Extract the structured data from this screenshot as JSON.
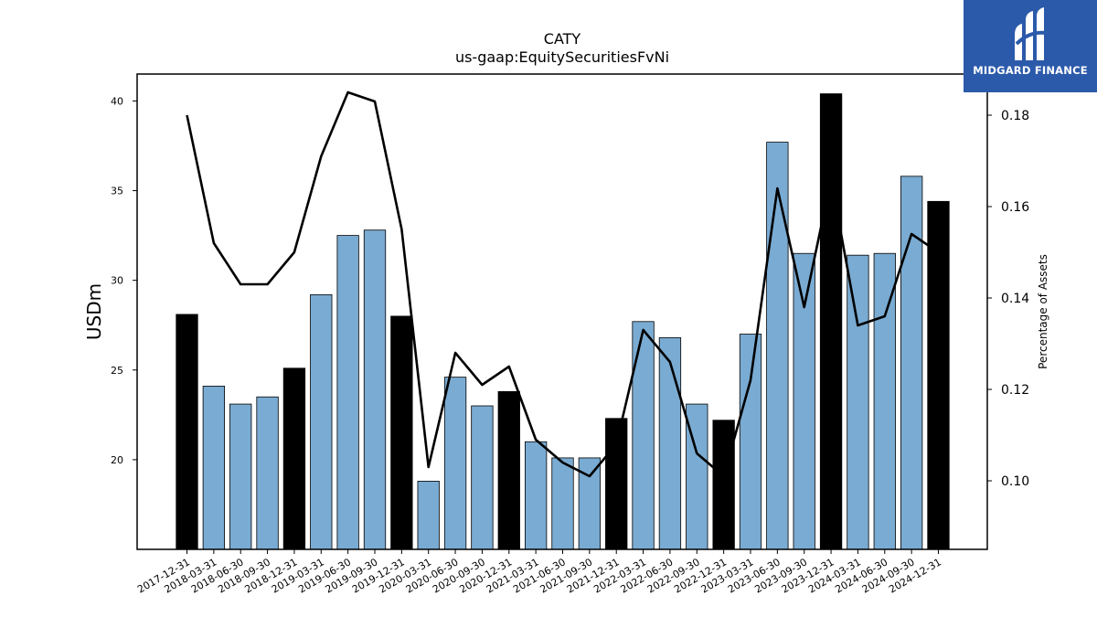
{
  "chart_data": {
    "type": "bar",
    "title": "CATY",
    "subtitle": "us-gaap:EquitySecuritiesFvNi",
    "ylabel": "USDm",
    "ylabel_right": "Percentage of Assets",
    "ylim": [
      15,
      41.5
    ],
    "ylim_right": [
      0.085,
      0.189
    ],
    "yticks": [
      20,
      25,
      30,
      35,
      40
    ],
    "yticks_right": [
      0.1,
      0.12,
      0.14,
      0.16,
      0.18
    ],
    "grid": false,
    "categories": [
      "2017-12-31",
      "2018-03-31",
      "2018-06-30",
      "2018-09-30",
      "2018-12-31",
      "2019-03-31",
      "2019-06-30",
      "2019-09-30",
      "2019-12-31",
      "2020-03-31",
      "2020-06-30",
      "2020-09-30",
      "2020-12-31",
      "2021-03-31",
      "2021-06-30",
      "2021-09-30",
      "2021-12-31",
      "2022-03-31",
      "2022-06-30",
      "2022-09-30",
      "2022-12-31",
      "2023-03-31",
      "2023-06-30",
      "2023-09-30",
      "2023-12-31",
      "2024-03-31",
      "2024-06-30",
      "2024-09-30",
      "2024-12-31"
    ],
    "series": [
      {
        "type": "bar",
        "axis": "left",
        "values": [
          28.1,
          24.1,
          23.1,
          23.5,
          25.1,
          29.2,
          32.5,
          32.8,
          28.0,
          18.8,
          24.6,
          23.0,
          23.8,
          21.0,
          20.1,
          20.1,
          22.3,
          27.7,
          26.8,
          23.1,
          22.2,
          27.0,
          37.7,
          31.5,
          40.4,
          31.4,
          31.5,
          35.8,
          34.4
        ],
        "colors_by_quarter": {
          "year_end": "#000000",
          "other": "#7aabd2"
        }
      },
      {
        "type": "line",
        "axis": "right",
        "values": [
          0.18,
          0.152,
          0.143,
          0.143,
          0.15,
          0.171,
          0.185,
          0.183,
          0.155,
          0.103,
          0.128,
          0.121,
          0.125,
          0.109,
          0.104,
          0.101,
          0.108,
          0.133,
          0.126,
          0.106,
          0.101,
          0.122,
          0.164,
          0.138,
          0.166,
          0.134,
          0.136,
          0.154,
          0.15
        ],
        "color": "#000000"
      }
    ]
  },
  "logo": {
    "text": "MIDGARD FINANCE",
    "background": "#2c5aab"
  }
}
